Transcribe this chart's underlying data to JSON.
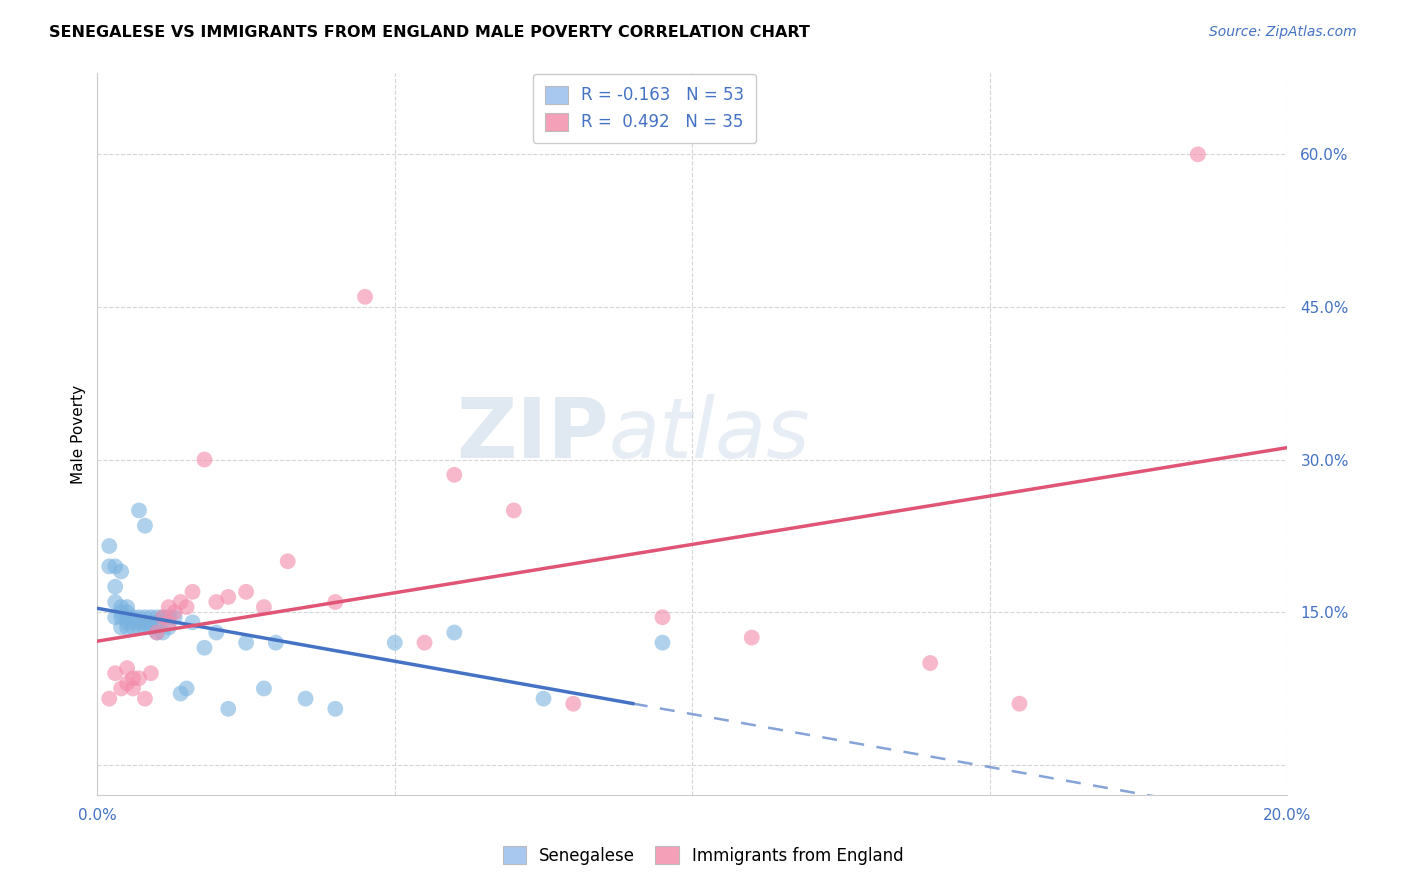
{
  "title": "SENEGALESE VS IMMIGRANTS FROM ENGLAND MALE POVERTY CORRELATION CHART",
  "source": "Source: ZipAtlas.com",
  "ylabel": "Male Poverty",
  "series1_label": "Senegalese",
  "series2_label": "Immigrants from England",
  "series1_color": "#7ab3e0",
  "series2_color": "#f48aaa",
  "series1_edge": "#5a9fd4",
  "series2_edge": "#e06080",
  "trend1_color": "#4472c4",
  "trend2_color": "#e05575",
  "legend_label1": "R = -0.163   N = 53",
  "legend_label2": "R =  0.492   N = 35",
  "legend_color1": "#a8c8f0",
  "legend_color2": "#f4a0b8",
  "xlim": [
    0,
    0.2
  ],
  "ylim": [
    -0.03,
    0.68
  ],
  "xtick_positions": [
    0.0,
    0.05,
    0.1,
    0.15,
    0.2
  ],
  "ytick_positions": [
    0.0,
    0.15,
    0.3,
    0.45,
    0.6
  ],
  "ytick_labels": [
    "",
    "15.0%",
    "30.0%",
    "45.0%",
    "60.0%"
  ],
  "watermark_text": "ZIPatlas",
  "trend1_solid_xend": 0.09,
  "senegalese_x": [
    0.002,
    0.002,
    0.003,
    0.003,
    0.003,
    0.003,
    0.004,
    0.004,
    0.004,
    0.004,
    0.004,
    0.005,
    0.005,
    0.005,
    0.005,
    0.005,
    0.006,
    0.006,
    0.006,
    0.007,
    0.007,
    0.007,
    0.007,
    0.008,
    0.008,
    0.008,
    0.008,
    0.009,
    0.009,
    0.009,
    0.01,
    0.01,
    0.01,
    0.011,
    0.011,
    0.012,
    0.012,
    0.013,
    0.014,
    0.015,
    0.016,
    0.018,
    0.02,
    0.022,
    0.025,
    0.028,
    0.03,
    0.035,
    0.04,
    0.05,
    0.06,
    0.075,
    0.095
  ],
  "senegalese_y": [
    0.215,
    0.195,
    0.175,
    0.195,
    0.16,
    0.145,
    0.145,
    0.19,
    0.155,
    0.15,
    0.135,
    0.145,
    0.14,
    0.15,
    0.155,
    0.135,
    0.14,
    0.135,
    0.145,
    0.135,
    0.145,
    0.14,
    0.25,
    0.14,
    0.135,
    0.145,
    0.235,
    0.135,
    0.14,
    0.145,
    0.14,
    0.13,
    0.145,
    0.145,
    0.13,
    0.145,
    0.135,
    0.145,
    0.07,
    0.075,
    0.14,
    0.115,
    0.13,
    0.055,
    0.12,
    0.075,
    0.12,
    0.065,
    0.055,
    0.12,
    0.13,
    0.065,
    0.12
  ],
  "england_x": [
    0.002,
    0.003,
    0.004,
    0.005,
    0.005,
    0.006,
    0.006,
    0.007,
    0.008,
    0.009,
    0.01,
    0.011,
    0.012,
    0.012,
    0.013,
    0.014,
    0.015,
    0.016,
    0.018,
    0.02,
    0.022,
    0.025,
    0.028,
    0.032,
    0.04,
    0.045,
    0.055,
    0.06,
    0.07,
    0.08,
    0.095,
    0.11,
    0.14,
    0.155,
    0.185
  ],
  "england_y": [
    0.065,
    0.09,
    0.075,
    0.095,
    0.08,
    0.085,
    0.075,
    0.085,
    0.065,
    0.09,
    0.13,
    0.145,
    0.14,
    0.155,
    0.15,
    0.16,
    0.155,
    0.17,
    0.3,
    0.16,
    0.165,
    0.17,
    0.155,
    0.2,
    0.16,
    0.46,
    0.12,
    0.285,
    0.25,
    0.06,
    0.145,
    0.125,
    0.1,
    0.06,
    0.6
  ]
}
